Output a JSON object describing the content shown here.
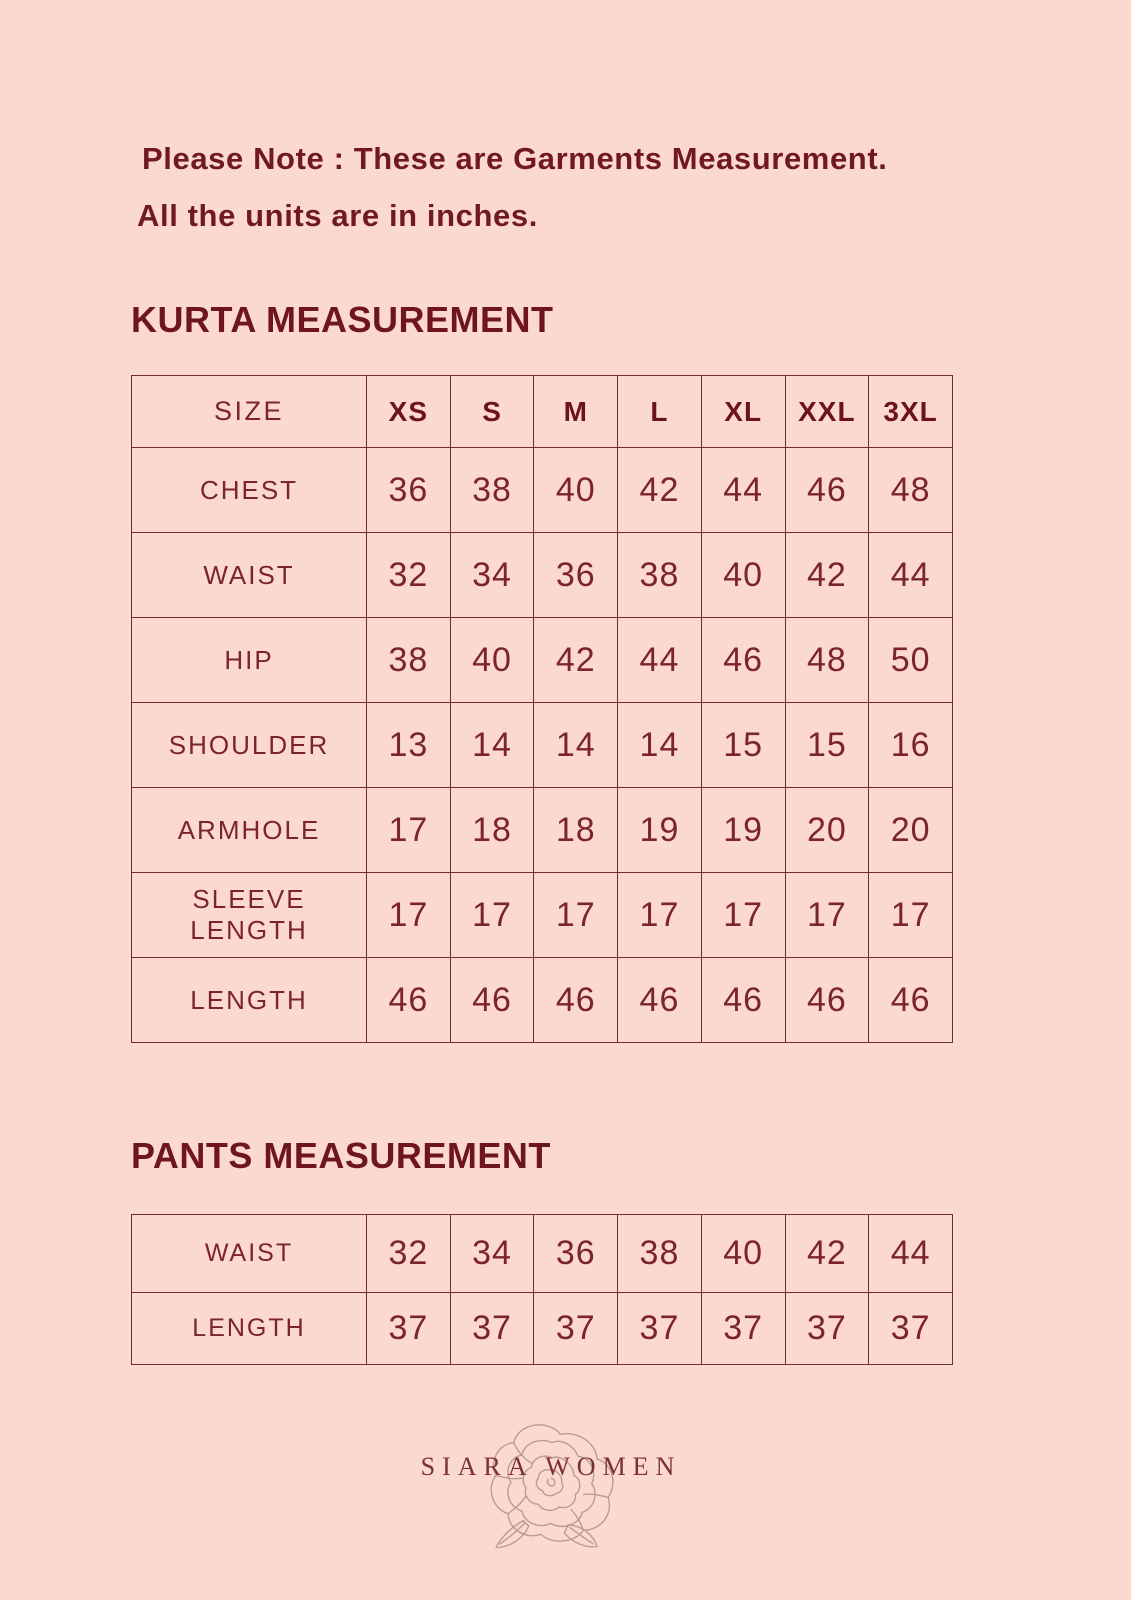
{
  "page": {
    "bg_color": "#fbd9d1",
    "text_color": "#701a20",
    "border_color": "#702c33"
  },
  "note": {
    "line1": "Please Note : These are Garments Measurement.",
    "line2": "All the units are in inches."
  },
  "kurta": {
    "title": "KURTA MEASUREMENT",
    "header": [
      "SIZE",
      "XS",
      "S",
      "M",
      "L",
      "XL",
      "XXL",
      "3XL"
    ],
    "rows": [
      {
        "label": "CHEST",
        "values": [
          "36",
          "38",
          "40",
          "42",
          "44",
          "46",
          "48"
        ]
      },
      {
        "label": "WAIST",
        "values": [
          "32",
          "34",
          "36",
          "38",
          "40",
          "42",
          "44"
        ]
      },
      {
        "label": "HIP",
        "values": [
          "38",
          "40",
          "42",
          "44",
          "46",
          "48",
          "50"
        ]
      },
      {
        "label": "SHOULDER",
        "values": [
          "13",
          "14",
          "14",
          "14",
          "15",
          "15",
          "16"
        ]
      },
      {
        "label": "ARMHOLE",
        "values": [
          "17",
          "18",
          "18",
          "19",
          "19",
          "20",
          "20"
        ]
      },
      {
        "label": "SLEEVE LENGTH",
        "values": [
          "17",
          "17",
          "17",
          "17",
          "17",
          "17",
          "17"
        ]
      },
      {
        "label": "LENGTH",
        "values": [
          "46",
          "46",
          "46",
          "46",
          "46",
          "46",
          "46"
        ]
      }
    ]
  },
  "pants": {
    "title": "PANTS MEASUREMENT",
    "rows": [
      {
        "label": "WAIST",
        "values": [
          "32",
          "34",
          "36",
          "38",
          "40",
          "42",
          "44"
        ]
      },
      {
        "label": "LENGTH",
        "values": [
          "37",
          "37",
          "37",
          "37",
          "37",
          "37",
          "37"
        ]
      }
    ]
  },
  "footer": {
    "brand": "SIARA WOMEN",
    "rose_icon": "rose-outline-icon"
  }
}
